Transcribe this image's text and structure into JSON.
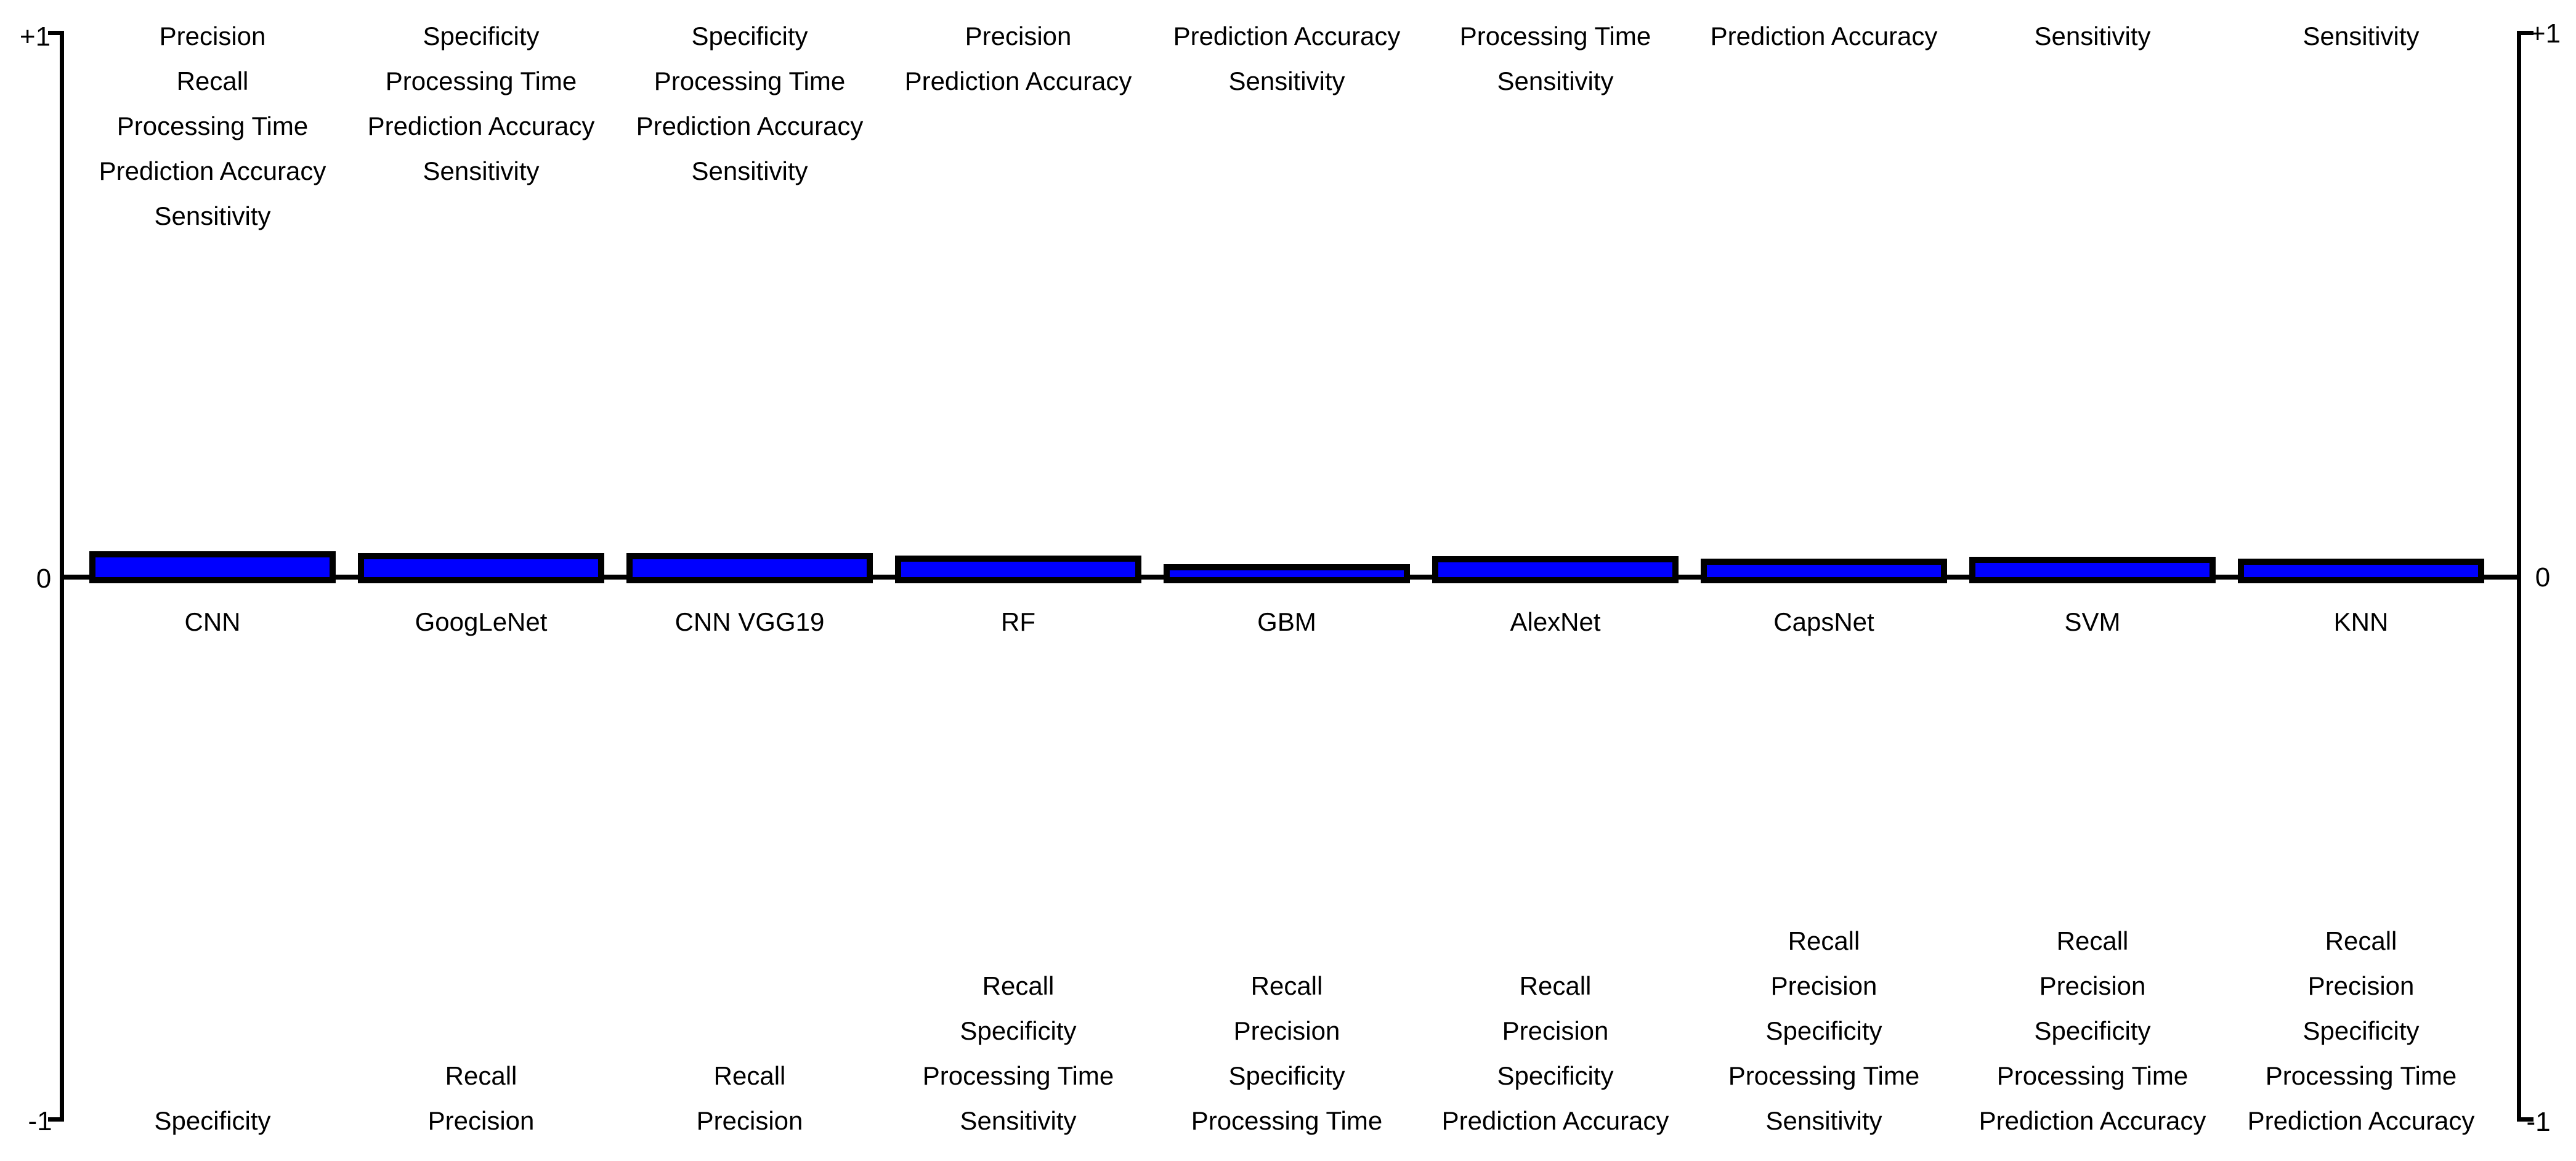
{
  "figure": {
    "background": "#ffffff",
    "text_color": "#000000"
  },
  "axis": {
    "left": {
      "top": "+1",
      "zero": "0",
      "bottom": "-1"
    },
    "right": {
      "top": "+1",
      "zero": "0",
      "bottom": "-1"
    }
  },
  "chart_data": {
    "type": "bar",
    "title": "",
    "xlabel": "",
    "ylabel": "",
    "ylim": [
      -1,
      1
    ],
    "grid": false,
    "legend": "none",
    "bar_color": "#0000ff",
    "bar_border_color": "#000000",
    "categories": [
      "CNN",
      "GoogLeNet",
      "CNN VGG19",
      "RF",
      "GBM",
      "AlexNet",
      "CapsNet",
      "SVM",
      "KNN"
    ],
    "values": [
      0.047,
      0.044,
      0.044,
      0.04,
      0.024,
      0.038,
      0.034,
      0.037,
      0.034
    ],
    "models": [
      {
        "name": "CNN",
        "value": 0.047,
        "top_metrics": [
          "Precision",
          "Recall",
          "Processing Time",
          "Prediction Accuracy",
          "Sensitivity"
        ],
        "bottom_metrics": [
          "Specificity"
        ]
      },
      {
        "name": "GoogLeNet",
        "value": 0.044,
        "top_metrics": [
          "Specificity",
          "Processing Time",
          "Prediction Accuracy",
          "Sensitivity"
        ],
        "bottom_metrics": [
          "Recall",
          "Precision"
        ]
      },
      {
        "name": "CNN VGG19",
        "value": 0.044,
        "top_metrics": [
          "Specificity",
          "Processing Time",
          "Prediction Accuracy",
          "Sensitivity"
        ],
        "bottom_metrics": [
          "Recall",
          "Precision"
        ]
      },
      {
        "name": "RF",
        "value": 0.04,
        "top_metrics": [
          "Precision",
          "Prediction Accuracy"
        ],
        "bottom_metrics": [
          "Recall",
          "Specificity",
          "Processing Time",
          "Sensitivity"
        ]
      },
      {
        "name": "GBM",
        "value": 0.024,
        "top_metrics": [
          "Prediction Accuracy",
          "Sensitivity"
        ],
        "bottom_metrics": [
          "Recall",
          "Precision",
          "Specificity",
          "Processing Time"
        ]
      },
      {
        "name": "AlexNet",
        "value": 0.038,
        "top_metrics": [
          "Processing Time",
          "Sensitivity"
        ],
        "bottom_metrics": [
          "Recall",
          "Precision",
          "Specificity",
          "Prediction Accuracy"
        ]
      },
      {
        "name": "CapsNet",
        "value": 0.034,
        "top_metrics": [
          "Prediction Accuracy"
        ],
        "bottom_metrics": [
          "Recall",
          "Precision",
          "Specificity",
          "Processing Time",
          "Sensitivity"
        ]
      },
      {
        "name": "SVM",
        "value": 0.037,
        "top_metrics": [
          "Sensitivity"
        ],
        "bottom_metrics": [
          "Recall",
          "Precision",
          "Specificity",
          "Processing Time",
          "Prediction Accuracy"
        ]
      },
      {
        "name": "KNN",
        "value": 0.034,
        "top_metrics": [
          "Sensitivity"
        ],
        "bottom_metrics": [
          "Recall",
          "Precision",
          "Specificity",
          "Processing Time",
          "Prediction Accuracy"
        ]
      }
    ]
  }
}
